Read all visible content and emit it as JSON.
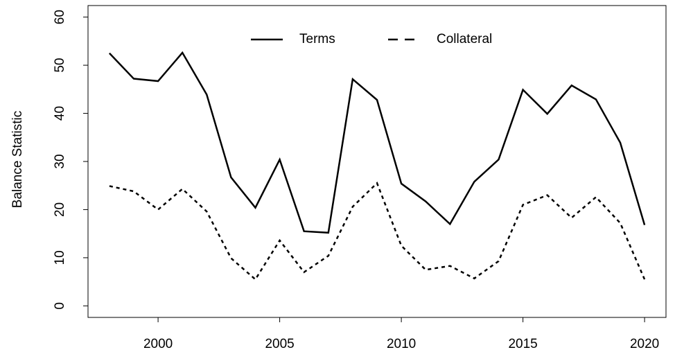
{
  "chart_data": {
    "type": "line",
    "ylabel": "Balance Statistic",
    "x": [
      1998,
      1999,
      2000,
      2001,
      2002,
      2003,
      2004,
      2005,
      2006,
      2007,
      2008,
      2009,
      2010,
      2011,
      2012,
      2013,
      2014,
      2015,
      2016,
      2017,
      2018,
      2019,
      2020
    ],
    "series": [
      {
        "name": "Terms",
        "color": "#000000",
        "line_style": "solid",
        "values": [
          52.5,
          47.2,
          46.7,
          52.6,
          43.9,
          26.7,
          20.4,
          30.4,
          15.5,
          15.2,
          47.1,
          42.8,
          25.4,
          21.7,
          17.0,
          25.8,
          30.4,
          44.9,
          39.9,
          45.8,
          42.9,
          33.9,
          16.8
        ]
      },
      {
        "name": "Collateral",
        "color": "#000000",
        "line_style": "dashed",
        "values": [
          24.9,
          23.8,
          20.0,
          24.3,
          19.6,
          9.9,
          5.5,
          13.6,
          7.0,
          10.4,
          20.6,
          25.5,
          12.5,
          7.5,
          8.3,
          5.7,
          9.3,
          21.0,
          23.0,
          18.3,
          22.6,
          17.2,
          5.5
        ]
      }
    ],
    "xlim": [
      1997.12,
      2020.88
    ],
    "ylim": [
      -2.4,
      62.4
    ],
    "xticks": [
      2000,
      2005,
      2010,
      2015,
      2020
    ],
    "yticks": [
      0,
      10,
      20,
      30,
      40,
      50,
      60
    ],
    "legend": "top"
  }
}
